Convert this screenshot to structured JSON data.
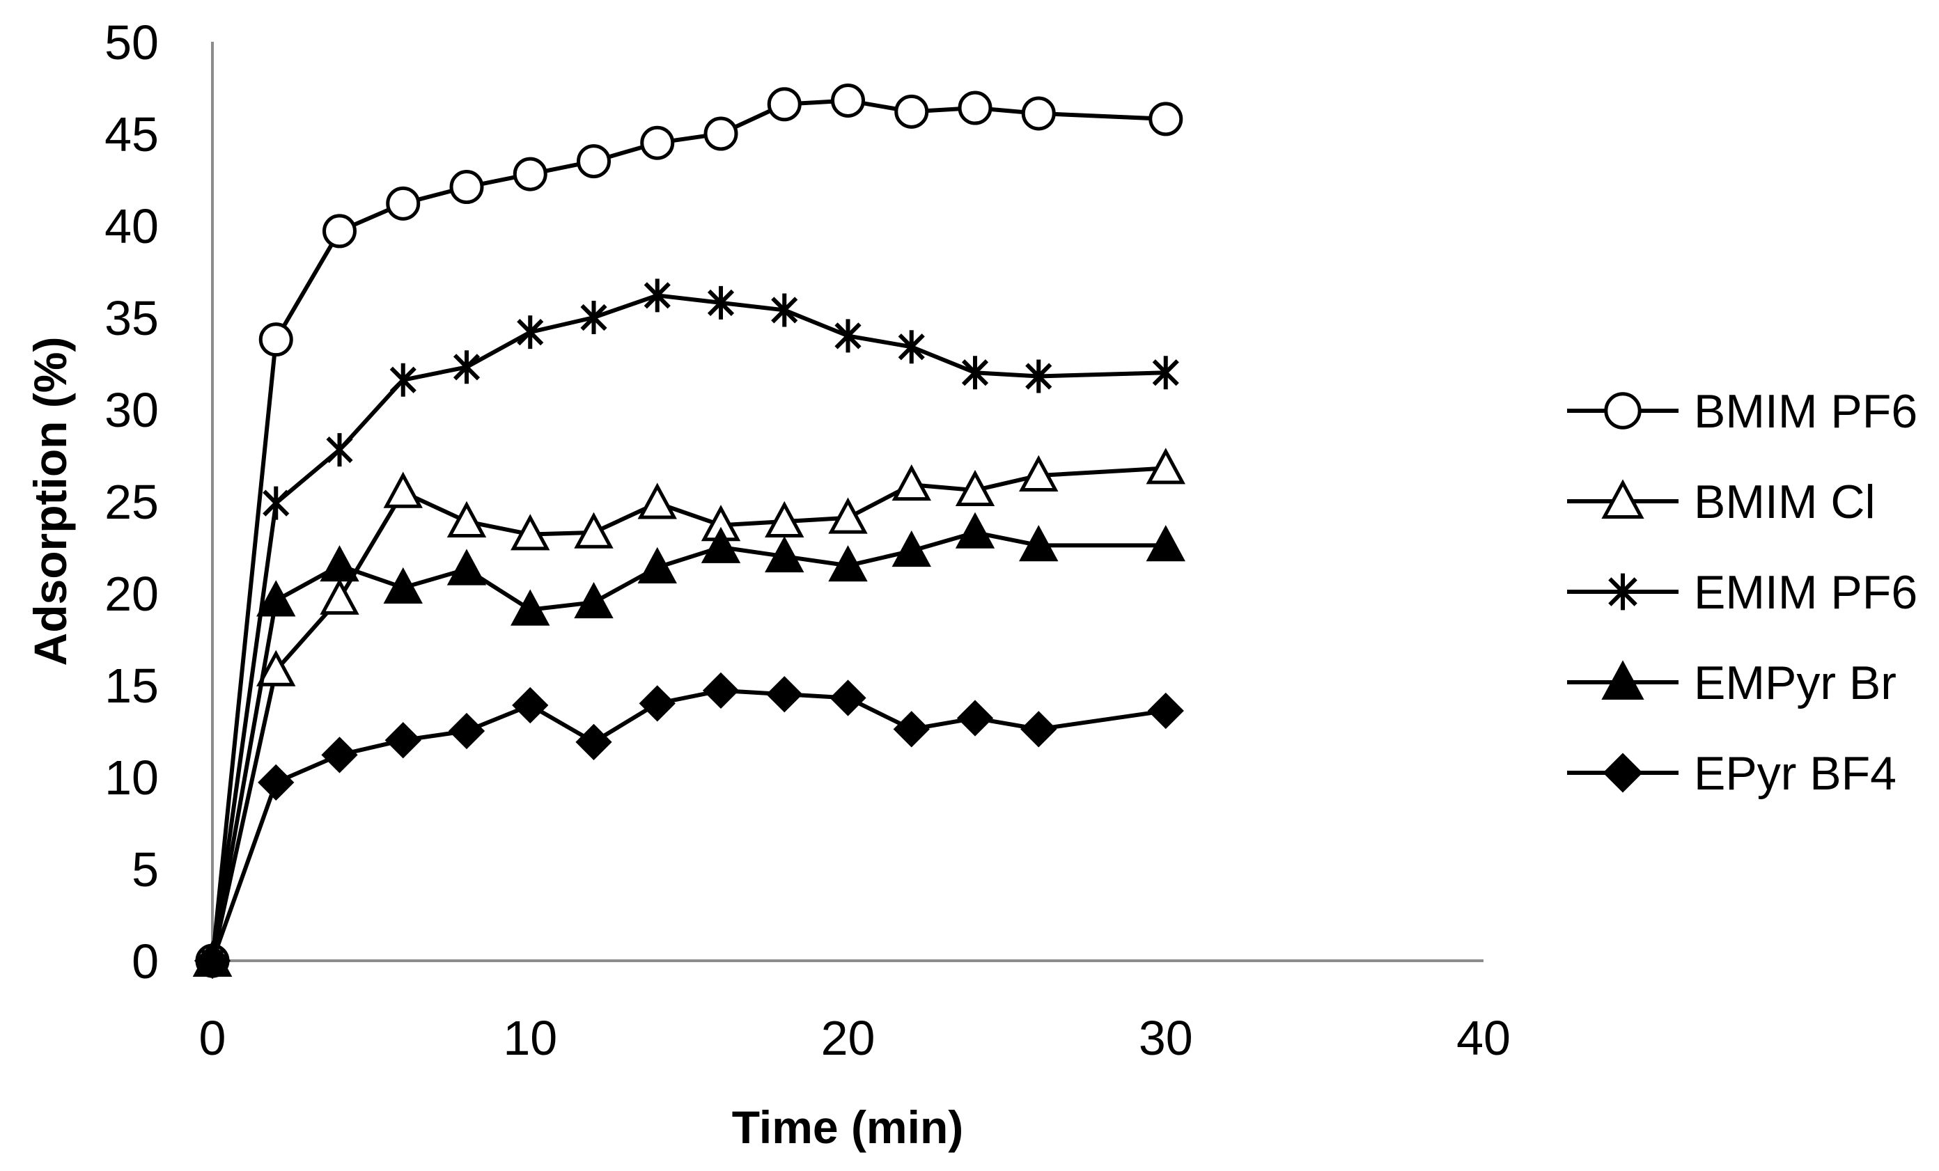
{
  "chart_data": {
    "type": "line",
    "title": "",
    "xlabel": "Time (min)",
    "ylabel": "Adsorption (%)",
    "xlim": [
      0,
      40
    ],
    "ylim": [
      0,
      50
    ],
    "xticks": [
      0,
      10,
      20,
      30,
      40
    ],
    "yticks": [
      0,
      5,
      10,
      15,
      20,
      25,
      30,
      35,
      40,
      45,
      50
    ],
    "grid": false,
    "legend_position": "right",
    "x": [
      0,
      2,
      4,
      6,
      8,
      10,
      12,
      14,
      16,
      18,
      20,
      22,
      24,
      26,
      30
    ],
    "series": [
      {
        "name": "BMIM PF6",
        "marker": "circle-open",
        "values": [
          0,
          33.8,
          39.7,
          41.2,
          42.1,
          42.8,
          43.5,
          44.5,
          45.0,
          46.6,
          46.8,
          46.2,
          46.4,
          46.1,
          45.8
        ]
      },
      {
        "name": "BMIM Cl",
        "marker": "triangle-open",
        "values": [
          0,
          15.8,
          19.7,
          25.5,
          23.9,
          23.2,
          23.3,
          24.9,
          23.7,
          23.9,
          24.1,
          25.9,
          25.6,
          26.4,
          26.8
        ]
      },
      {
        "name": "EMIM PF6",
        "marker": "asterisk",
        "values": [
          0,
          24.9,
          27.8,
          31.6,
          32.3,
          34.2,
          35.0,
          36.2,
          35.8,
          35.4,
          34.0,
          33.4,
          32.0,
          31.8,
          32.0
        ]
      },
      {
        "name": "EMPyr Br",
        "marker": "triangle-filled",
        "values": [
          0,
          19.6,
          21.5,
          20.3,
          21.3,
          19.1,
          19.5,
          21.4,
          22.5,
          22.0,
          21.5,
          22.3,
          23.3,
          22.6,
          22.6
        ]
      },
      {
        "name": "EPyr BF4",
        "marker": "diamond-filled",
        "values": [
          0,
          9.7,
          11.2,
          12.0,
          12.5,
          13.9,
          11.9,
          14.0,
          14.7,
          14.5,
          14.3,
          12.6,
          13.2,
          12.6,
          13.6
        ]
      }
    ]
  },
  "colors": {
    "line": "#000000",
    "axis": "#8c8c8c",
    "background": "#ffffff"
  }
}
